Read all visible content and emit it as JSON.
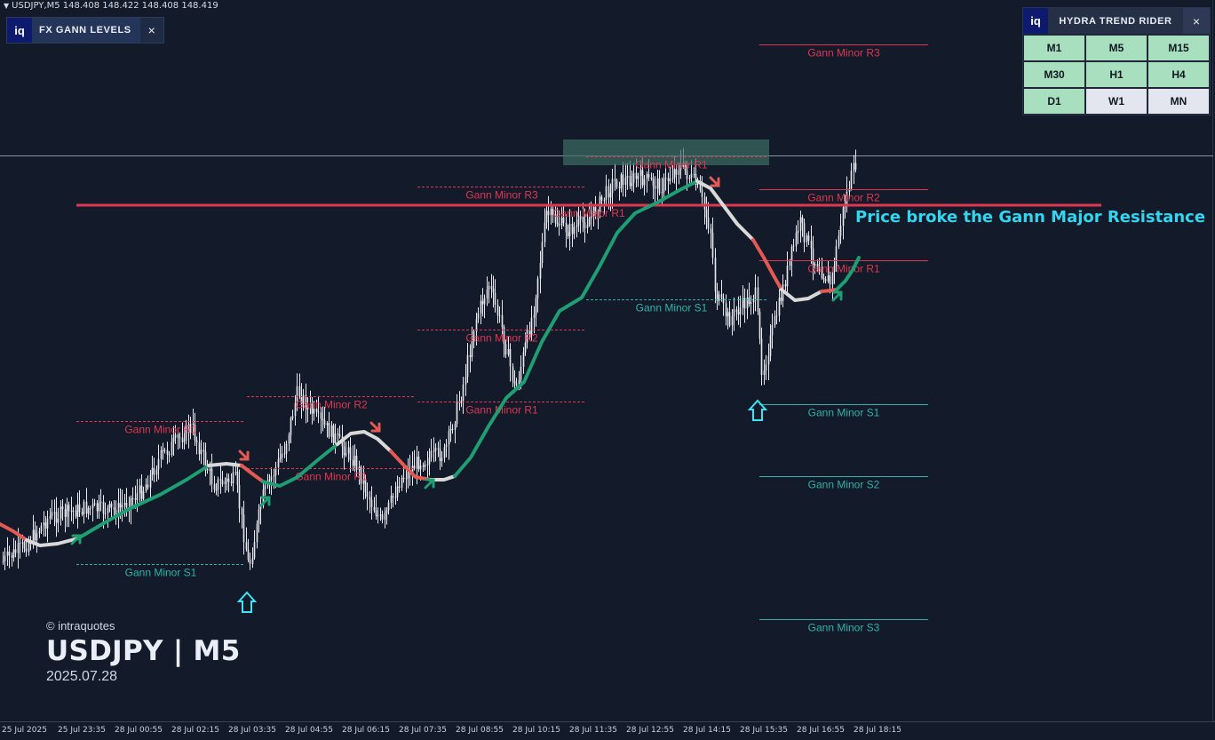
{
  "chart_header": {
    "info": "USDJPY,M5  148.408 148.422 148.408 148.419"
  },
  "gann_panel": {
    "badge": "iq",
    "title": "FX GANN LEVELS",
    "close": "×"
  },
  "hydra_panel": {
    "badge": "iq",
    "title": "HYDRA TREND RIDER",
    "close": "×",
    "timeframes": [
      {
        "label": "M1",
        "state": "green"
      },
      {
        "label": "M5",
        "state": "green"
      },
      {
        "label": "M15",
        "state": "green"
      },
      {
        "label": "M30",
        "state": "green"
      },
      {
        "label": "H1",
        "state": "green"
      },
      {
        "label": "H4",
        "state": "green"
      },
      {
        "label": "D1",
        "state": "green"
      },
      {
        "label": "W1",
        "state": "light"
      },
      {
        "label": "MN",
        "state": "light"
      }
    ]
  },
  "watermark": {
    "copyright": "© intraquotes",
    "symbol": "USDJPY | M5",
    "date": "2025.07.28"
  },
  "annotation": "Price broke the Gann Major Resistance",
  "gann_labels": {
    "minor_r3": "Gann Minor R3",
    "minor_r2": "Gann Minor R2",
    "minor_r1": "Gann Minor R1",
    "major_r1": "Gann Major R1",
    "minor_s1": "Gann Minor S1",
    "minor_s2": "Gann Minor S2",
    "minor_s3": "Gann Minor S3"
  },
  "x_ticks": [
    "25 Jul 2025",
    "25 Jul 23:35",
    "28 Jul 00:55",
    "28 Jul 02:15",
    "28 Jul 03:35",
    "28 Jul 04:55",
    "28 Jul 06:15",
    "28 Jul 07:35",
    "28 Jul 08:55",
    "28 Jul 10:15",
    "28 Jul 11:35",
    "28 Jul 12:55",
    "28 Jul 14:15",
    "28 Jul 15:35",
    "28 Jul 16:55",
    "28 Jul 18:15"
  ],
  "colors": {
    "background": "#131a29",
    "resistance": "#e0364f",
    "support": "#2fb3a8",
    "trend_up": "#1f9e73",
    "trend_down": "#e35a55",
    "trend_neutral": "#d9d9d9",
    "annotation": "#32d6f0"
  }
}
